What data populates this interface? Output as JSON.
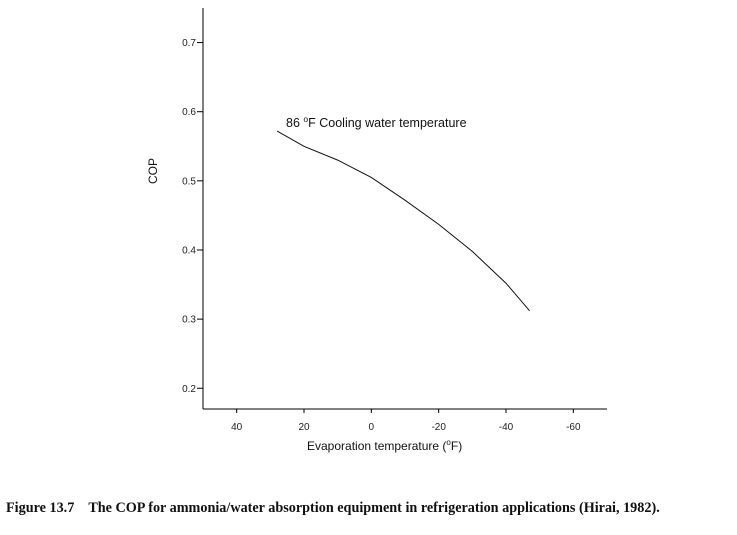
{
  "chart_data": {
    "type": "line",
    "title": "",
    "xlabel": "Evaporation temperature (°F)",
    "ylabel": "COP",
    "xlim": [
      50,
      -70
    ],
    "ylim": [
      0.17,
      0.75
    ],
    "x_reversed": true,
    "x_ticks": [
      40,
      20,
      0,
      -20,
      -40,
      -60
    ],
    "x_tick_labels": [
      "40",
      "20",
      "0",
      "-20",
      "-40",
      "-60"
    ],
    "y_ticks": [
      0.2,
      0.3,
      0.4,
      0.5,
      0.6,
      0.7
    ],
    "y_tick_labels": [
      "0.2",
      "0.3",
      "0.4",
      "0.5",
      "0.6",
      "0.7"
    ],
    "grid": false,
    "series": [
      {
        "name": "86 °F Cooling water temperature",
        "x": [
          28,
          20,
          10,
          0,
          -10,
          -20,
          -30,
          -40,
          -47
        ],
        "y": [
          0.572,
          0.55,
          0.53,
          0.505,
          0.472,
          0.437,
          0.398,
          0.352,
          0.312
        ]
      }
    ],
    "annotations": [
      {
        "text_prefix": "86 ",
        "superscript": "o",
        "text_suffix": "F Cooling water temperature"
      }
    ]
  },
  "caption": {
    "number": "Figure 13.7",
    "text": "The COP for ammonia/water absorption equipment in refrigeration applications (Hirai, 1982)."
  }
}
